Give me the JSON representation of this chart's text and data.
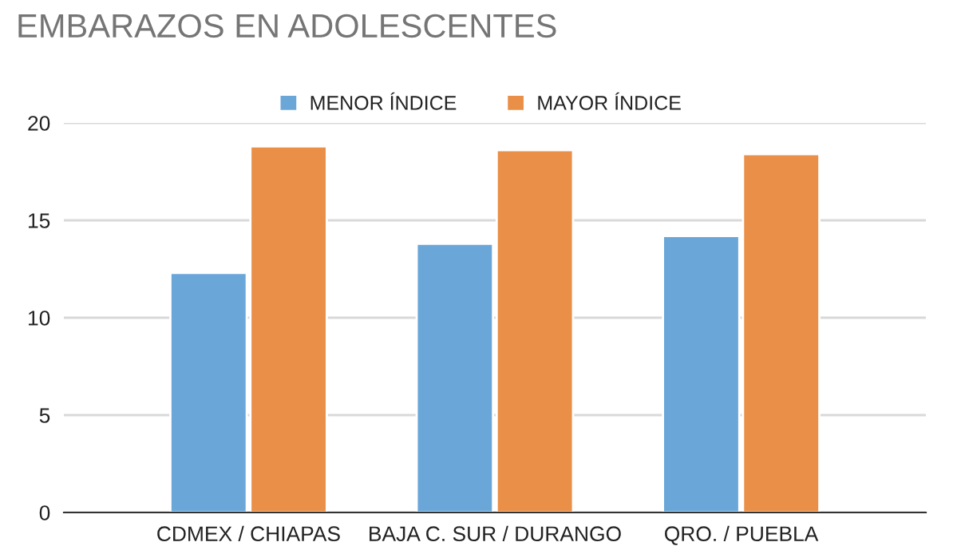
{
  "chart_data": {
    "type": "bar",
    "title": "EMBARAZOS EN ADOLESCENTES",
    "categories": [
      "CDMEX / CHIAPAS",
      "BAJA C. SUR / DURANGO",
      "QRO. / PUEBLA"
    ],
    "series": [
      {
        "name": "MENOR ÍNDICE",
        "color": "#6aa7d8",
        "values": [
          12.3,
          13.8,
          14.2
        ]
      },
      {
        "name": "MAYOR ÍNDICE",
        "color": "#e98f48",
        "values": [
          18.8,
          18.6,
          18.4
        ]
      }
    ],
    "ylim": [
      0,
      20
    ],
    "yticks": [
      0,
      5,
      10,
      15,
      20
    ],
    "grid": "y",
    "legend": "top"
  }
}
